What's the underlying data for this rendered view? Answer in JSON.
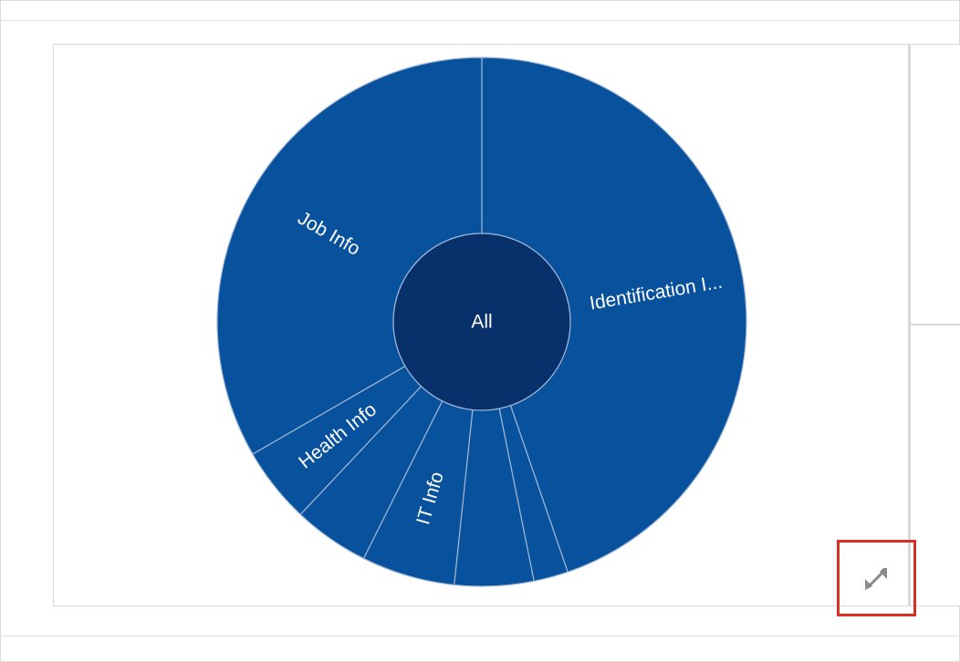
{
  "chart_data": {
    "type": "sunburst",
    "root": {
      "label": "All"
    },
    "segments": [
      {
        "label": "Identification I...",
        "value": 51
      },
      {
        "label": "",
        "value": 2.4
      },
      {
        "label": "",
        "value": 5.5
      },
      {
        "label": "IT Info",
        "value": 6.5
      },
      {
        "label": "",
        "value": 5.3
      },
      {
        "label": "Health Info",
        "value": 5.3
      },
      {
        "label": "Job Info",
        "value": 38
      }
    ],
    "colors": {
      "segment": "#08519c",
      "root": "#08306b",
      "separator": "#9fb6d6"
    }
  },
  "toolbar": {
    "expand_icon": "expand-arrows-icon"
  }
}
